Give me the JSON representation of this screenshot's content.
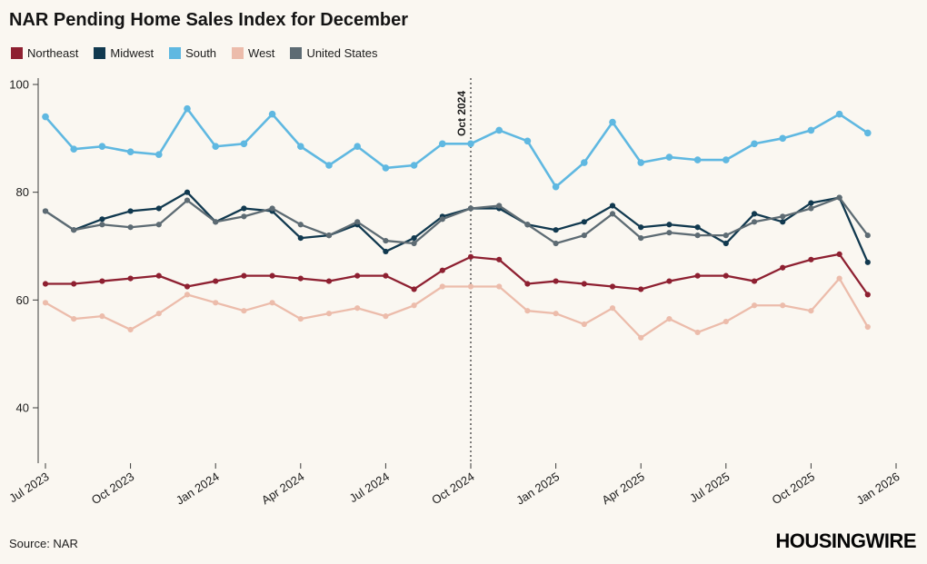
{
  "page": {
    "title": "NAR Pending Home Sales Index for December",
    "source": "Source: NAR",
    "brand": "HOUSINGWIRE",
    "background": "#faf7f1"
  },
  "chart_data": {
    "type": "line",
    "title": "NAR Pending Home Sales Index for December",
    "xlabel": "",
    "ylabel": "",
    "ylim": [
      30,
      101
    ],
    "grid": false,
    "legend_position": "top-left",
    "y_ticks": [
      40,
      60,
      80,
      100
    ],
    "x": [
      "Jul 2023",
      "Aug 2023",
      "Sep 2023",
      "Oct 2023",
      "Nov 2023",
      "Dec 2023",
      "Jan 2024",
      "Feb 2024",
      "Mar 2024",
      "Apr 2024",
      "May 2024",
      "Jun 2024",
      "Jul 2024",
      "Aug 2024",
      "Sep 2024",
      "Oct 2024",
      "Nov 2024",
      "Dec 2024",
      "Jan 2025",
      "Feb 2025",
      "Mar 2025",
      "Apr 2025",
      "May 2025",
      "Jun 2025",
      "Jul 2025",
      "Aug 2025",
      "Sep 2025",
      "Oct 2025",
      "Nov 2025",
      "Dec 2025"
    ],
    "x_tick_labels": [
      "Jul 2023",
      "Oct 2023",
      "Jan 2024",
      "Apr 2024",
      "Jul 2024",
      "Oct 2024",
      "Jan 2025",
      "Apr 2025",
      "Jul 2025",
      "Oct 2025",
      "Jan 2026"
    ],
    "x_tick_indices": [
      0,
      3,
      6,
      9,
      12,
      15,
      18,
      21,
      24,
      27,
      30
    ],
    "annotation": {
      "label": "Oct 2024",
      "x_index": 15
    },
    "series": [
      {
        "name": "Northeast",
        "color": "#8e2031",
        "values": [
          63,
          63,
          63.5,
          64,
          64.5,
          62.5,
          63.5,
          64.5,
          64.5,
          64,
          63.5,
          64.5,
          64.5,
          62,
          65.5,
          68,
          67.5,
          63,
          63.5,
          63,
          62.5,
          62,
          63.5,
          64.5,
          64.5,
          63.5,
          66,
          67.5,
          68.5,
          61
        ]
      },
      {
        "name": "Midwest",
        "color": "#11394f",
        "values": [
          76.5,
          73,
          75,
          76.5,
          77,
          80,
          74.5,
          77,
          76.5,
          71.5,
          72,
          74,
          69,
          71.5,
          75.5,
          77,
          77,
          74,
          73,
          74.5,
          77.5,
          73.5,
          74,
          73.5,
          70.5,
          76,
          74.5,
          78,
          79,
          67
        ]
      },
      {
        "name": "South",
        "color": "#5fb8e1",
        "values": [
          94,
          88,
          88.5,
          87.5,
          87,
          95.5,
          88.5,
          89,
          94.5,
          88.5,
          85,
          88.5,
          84.5,
          85,
          89,
          89,
          91.5,
          89.5,
          81,
          85.5,
          93,
          85.5,
          86.5,
          86,
          86,
          89,
          90,
          91.5,
          94.5,
          91
        ]
      },
      {
        "name": "West",
        "color": "#ecbcab",
        "values": [
          59.5,
          56.5,
          57,
          54.5,
          57.5,
          61,
          59.5,
          58,
          59.5,
          56.5,
          57.5,
          58.5,
          57,
          59,
          62.5,
          62.5,
          62.5,
          58,
          57.5,
          55.5,
          58.5,
          53,
          56.5,
          54,
          56,
          59,
          59,
          58,
          64,
          55
        ]
      },
      {
        "name": "United States",
        "color": "#5d6b73",
        "values": [
          76.5,
          73,
          74,
          73.5,
          74,
          78.5,
          74.5,
          75.5,
          77,
          74,
          72,
          74.5,
          71,
          70.5,
          75,
          77,
          77.5,
          74,
          70.5,
          72,
          76,
          71.5,
          72.5,
          72,
          72,
          74.5,
          75.5,
          77,
          79,
          72
        ]
      }
    ]
  }
}
